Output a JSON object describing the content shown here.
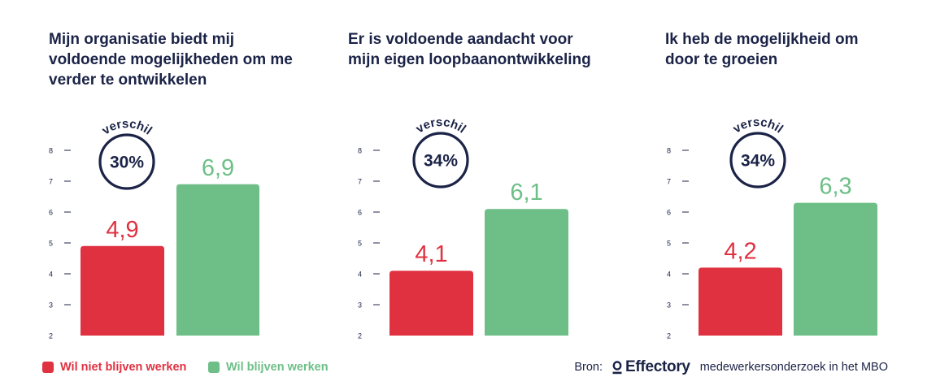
{
  "colors": {
    "niet": "#e03140",
    "wel": "#6dbf87",
    "navy": "#1b2347",
    "axis": "#1b2347"
  },
  "legend": {
    "niet": "Wil niet blijven werken",
    "wel": "Wil blijven werken"
  },
  "source": {
    "prefix": "Bron:",
    "brand": "Effectory",
    "suffix": "medewerkersonderzoek in het MBO"
  },
  "chart_data": [
    {
      "type": "bar",
      "title": "Mijn organisatie biedt mij voldoende mogelijkheden om me verder te ontwikkelen",
      "categories": [
        "Wil niet blijven werken",
        "Wil blijven werken"
      ],
      "values": [
        4.9,
        6.9
      ],
      "value_labels": [
        "4,9",
        "6,9"
      ],
      "badge_label": "verschil",
      "badge_value": "30%",
      "yticks": [
        "2",
        "3",
        "4",
        "5",
        "6",
        "7",
        "8"
      ],
      "ylim": [
        2,
        8
      ]
    },
    {
      "type": "bar",
      "title": "Er is voldoende aandacht voor mijn eigen loopbaanontwikkeling",
      "categories": [
        "Wil niet blijven werken",
        "Wil blijven werken"
      ],
      "values": [
        4.1,
        6.1
      ],
      "value_labels": [
        "4,1",
        "6,1"
      ],
      "badge_label": "verschil",
      "badge_value": "34%",
      "yticks": [
        "2",
        "3",
        "4",
        "5",
        "6",
        "7",
        "8"
      ],
      "ylim": [
        2,
        8
      ]
    },
    {
      "type": "bar",
      "title": "Ik heb de mogelijkheid om door te groeien",
      "categories": [
        "Wil niet blijven werken",
        "Wil blijven werken"
      ],
      "values": [
        4.2,
        6.3
      ],
      "value_labels": [
        "4,2",
        "6,3"
      ],
      "badge_label": "verschil",
      "badge_value": "34%",
      "yticks": [
        "2",
        "3",
        "4",
        "5",
        "6",
        "7",
        "8"
      ],
      "ylim": [
        2,
        8
      ]
    }
  ]
}
